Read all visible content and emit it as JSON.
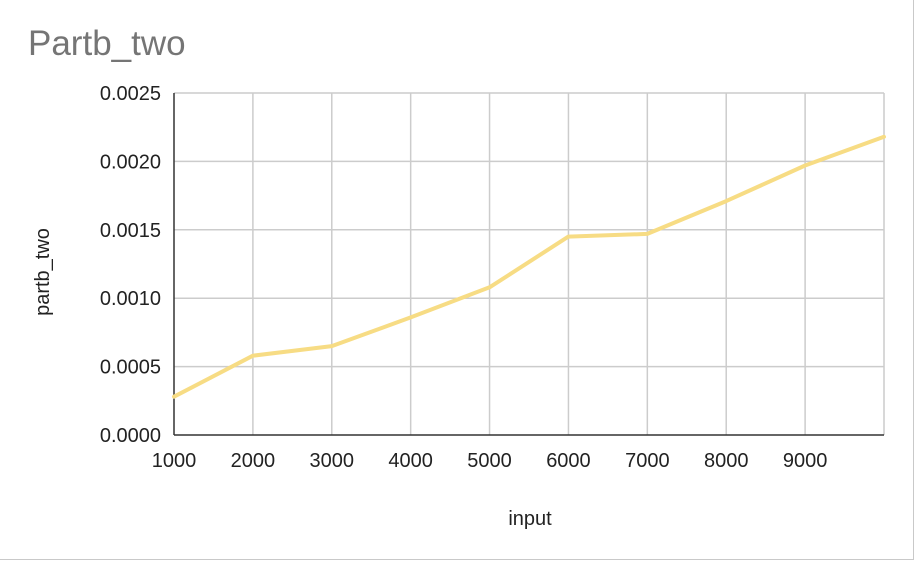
{
  "chart_data": {
    "type": "line",
    "title": "Partb_two",
    "xlabel": "input",
    "ylabel": "partb_two",
    "x": [
      1000,
      2000,
      3000,
      4000,
      5000,
      6000,
      7000,
      8000,
      9000,
      10000
    ],
    "x_tick_labels": [
      "1000",
      "2000",
      "3000",
      "4000",
      "5000",
      "6000",
      "7000",
      "8000",
      "9000"
    ],
    "y_tick_labels": [
      "0.0000",
      "0.0005",
      "0.0010",
      "0.0015",
      "0.0020",
      "0.0025"
    ],
    "xlim": [
      1000,
      10000
    ],
    "ylim": [
      0,
      0.0025
    ],
    "grid": true,
    "series": [
      {
        "values": [
          0.00028,
          0.00058,
          0.00065,
          0.00086,
          0.00108,
          0.00145,
          0.00147,
          0.00171,
          0.00197,
          0.00218
        ],
        "color": "#f7dc84"
      }
    ]
  }
}
